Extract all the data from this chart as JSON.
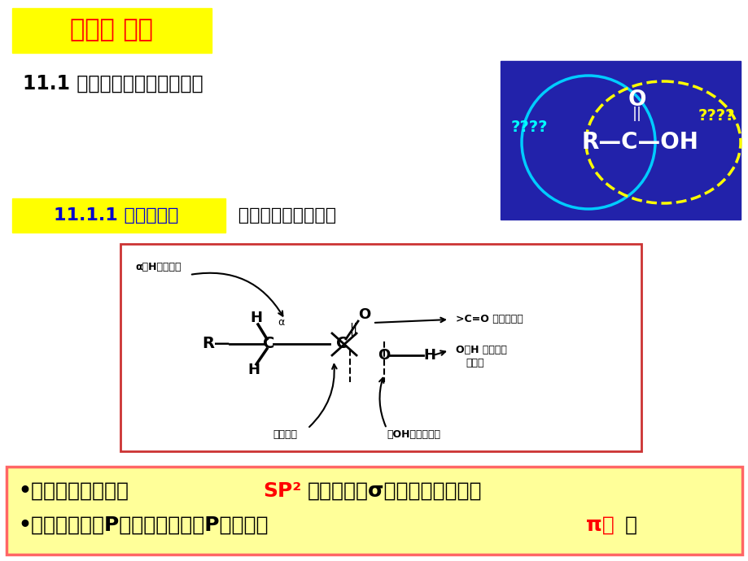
{
  "bg_color": "#ffffff",
  "title_box_color": "#ffff00",
  "title_text": "（一） 罧酸",
  "title_text_color": "#ff0000",
  "section_text": "11.1 罧酸的结构、分类和命名",
  "section_text_color": "#000000",
  "subsection_box_color": "#ffff00",
  "subsection_text": "11.1.1 罧酸的结构",
  "subsection_text_color": "#0000cc",
  "subsection_suffix": " 都含有罧基官能团：",
  "subsection_suffix_color": "#000000",
  "diagram_box_color": "#cc3333",
  "diagram_bg": "#ffffff",
  "bottom_box_color": "#ffff99",
  "bottom_box_border": "#ff6666",
  "bottom_text_color": "#000000",
  "bottom_highlight_color": "#ff0000",
  "venn_bg": "#2222aa",
  "venn_circle1_color": "#00ccff",
  "venn_circle2_color": "#ffff00",
  "venn_formula_color": "#ffffff",
  "venn_q1_color": "#00ffff",
  "venn_q2_color": "#ffff00",
  "alpha_label": "α－H取代反应",
  "decarboxyl_label": "脱罧反应",
  "oh_replace_label": "－OH被取代反应",
  "co_addition_label": ">C=O 基亲核加成",
  "oh_break_label": "O－H 键断裂而",
  "acidity_label": "呈酸性",
  "bottom_line1a": "•罧基中的碳原子是",
  "bottom_line1b": "SP²",
  "bottom_line1c": "杂化，三个σ键在一个平面上。",
  "bottom_line2a": "•碳原子的一个P轨道与氧原子的P轨道形成",
  "bottom_line2b": "π键",
  "bottom_line2c": "。"
}
